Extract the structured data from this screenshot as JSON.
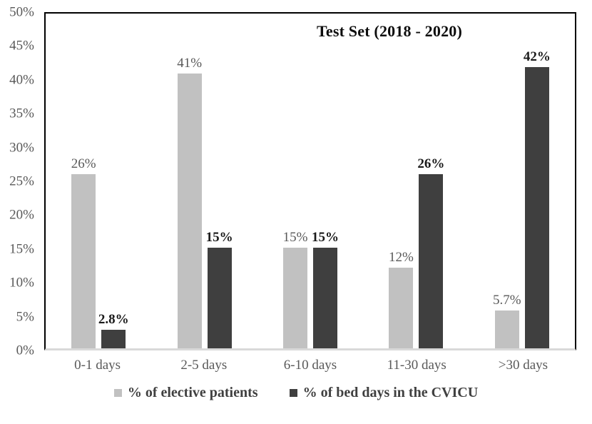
{
  "chart_data": {
    "type": "bar",
    "title": "Test Set (2018 - 2020)",
    "categories": [
      "0-1 days",
      "2-5 days",
      "6-10 days",
      "11-30 days",
      ">30 days"
    ],
    "series": [
      {
        "name": "% of elective patients",
        "color": "#c1c1c1",
        "values": [
          26,
          41,
          15,
          12,
          5.7
        ],
        "labels": [
          "26%",
          "41%",
          "15%",
          "12%",
          "5.7%"
        ],
        "bold_labels": false
      },
      {
        "name": "% of bed days in the CVICU",
        "color": "#3f3f3f",
        "values": [
          2.8,
          15,
          15,
          26,
          42
        ],
        "labels": [
          "2.8%",
          "15%",
          "15%",
          "26%",
          "42%"
        ],
        "bold_labels": true
      }
    ],
    "xlabel": "",
    "ylabel": "",
    "ylim": [
      0,
      50
    ],
    "yticks": {
      "values": [
        0,
        5,
        10,
        15,
        20,
        25,
        30,
        35,
        40,
        45,
        50
      ],
      "labels": [
        "0%",
        "5%",
        "10%",
        "15%",
        "20%",
        "25%",
        "30%",
        "35%",
        "40%",
        "45%",
        "50%"
      ]
    },
    "grid": false,
    "legend_position": "bottom",
    "colors": {
      "axis_line": "#000000",
      "baseline": "#d9d9d9",
      "tick_text": "#595959",
      "title_text": "#0d0d0d",
      "legend_text": "#404040"
    }
  }
}
